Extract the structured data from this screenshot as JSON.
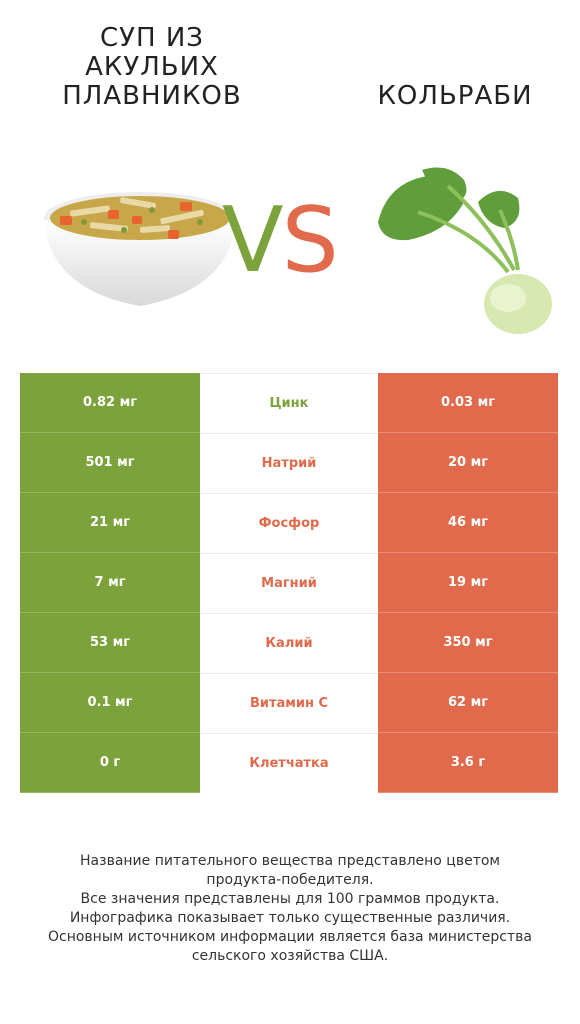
{
  "header": {
    "left_title": "СУП ИЗ АКУЛЬИХ ПЛАВНИКОВ",
    "right_title": "КОЛЬРАБИ",
    "vs_v": "V",
    "vs_s": "S"
  },
  "colors": {
    "left_product": "#7ca33b",
    "right_product": "#e06a4b"
  },
  "rows": [
    {
      "left": "0.82 мг",
      "nutrient": "Цинк",
      "right": "0.03 мг",
      "winner": "left"
    },
    {
      "left": "501 мг",
      "nutrient": "Натрий",
      "right": "20 мг",
      "winner": "right"
    },
    {
      "left": "21 мг",
      "nutrient": "Фосфор",
      "right": "46 мг",
      "winner": "right"
    },
    {
      "left": "7 мг",
      "nutrient": "Магний",
      "right": "19 мг",
      "winner": "right"
    },
    {
      "left": "53 мг",
      "nutrient": "Калий",
      "right": "350 мг",
      "winner": "right"
    },
    {
      "left": "0.1 мг",
      "nutrient": "Витамин C",
      "right": "62 мг",
      "winner": "right"
    },
    {
      "left": "0 г",
      "nutrient": "Клетчатка",
      "right": "3.6 г",
      "winner": "right"
    }
  ],
  "footnote": {
    "line1": "Название питательного вещества представлено цветом",
    "line2": "продукта-победителя.",
    "line3": "Все значения представлены для 100 граммов продукта.",
    "line4": "Инфографика показывает только существенные различия.",
    "line5": "Основным источником информации является база министерства",
    "line6": "сельского хозяйства США."
  }
}
